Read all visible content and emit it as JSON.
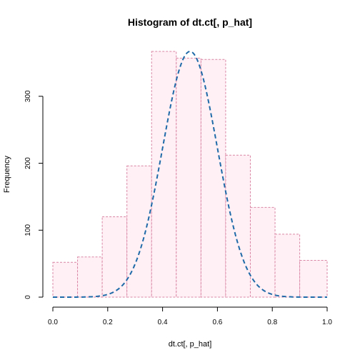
{
  "chart_data": {
    "type": "bar",
    "subtype": "histogram-with-density-curve",
    "title": "Histogram of dt.ct[, p_hat]",
    "xlabel": "dt.ct[, p_hat]",
    "ylabel": "Frequency",
    "xlim": [
      0.0,
      1.0
    ],
    "ylim": [
      0,
      367
    ],
    "x_ticks": [
      "0.0",
      "0.2",
      "0.4",
      "0.6",
      "0.8",
      "1.0"
    ],
    "y_ticks": [
      "0",
      "100",
      "200",
      "300"
    ],
    "bins": [
      {
        "start": 0.0,
        "end": 0.09,
        "count": 52
      },
      {
        "start": 0.09,
        "end": 0.18,
        "count": 60
      },
      {
        "start": 0.18,
        "end": 0.27,
        "count": 120
      },
      {
        "start": 0.27,
        "end": 0.36,
        "count": 196
      },
      {
        "start": 0.36,
        "end": 0.45,
        "count": 367
      },
      {
        "start": 0.45,
        "end": 0.54,
        "count": 357
      },
      {
        "start": 0.54,
        "end": 0.63,
        "count": 355
      },
      {
        "start": 0.63,
        "end": 0.72,
        "count": 212
      },
      {
        "start": 0.72,
        "end": 0.81,
        "count": 134
      },
      {
        "start": 0.81,
        "end": 0.9,
        "count": 94
      },
      {
        "start": 0.9,
        "end": 1.0,
        "count": 55
      }
    ],
    "curve": {
      "type": "normal-density",
      "mean": 0.5,
      "sd": 0.1,
      "peak": 367
    },
    "colors": {
      "bar_fill": "#fff0f5",
      "bar_border": "#d986a4",
      "curve": "#1f6aa8"
    }
  }
}
